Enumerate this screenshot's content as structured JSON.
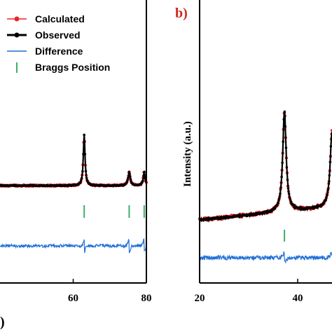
{
  "chart_data": [
    {
      "type": "line",
      "panel": "a",
      "panel_tag_fragment": ")",
      "xlim": [
        40,
        80
      ],
      "x_ticks": [
        60,
        80
      ],
      "legend": [
        {
          "label": "Calculated",
          "color": "#e8262b",
          "marker": "dot-line"
        },
        {
          "label": "Observed",
          "color": "#000000",
          "marker": "dot-line-thick"
        },
        {
          "label": "Difference",
          "color": "#1f6fd6",
          "marker": "line"
        },
        {
          "label": "Braggs Position",
          "color": "#3fae6b",
          "marker": "vbar"
        }
      ],
      "peaks": [
        {
          "x": 63.0,
          "height": 0.83,
          "width": 0.28
        },
        {
          "x": 75.3,
          "height": 0.22,
          "width": 0.35
        },
        {
          "x": 79.4,
          "height": 0.22,
          "width": 0.3
        }
      ],
      "bragg_positions": [
        63.0,
        75.3,
        79.4
      ],
      "series": [
        {
          "name": "Calculated",
          "color": "#e8262b"
        },
        {
          "name": "Observed",
          "color": "#000000"
        },
        {
          "name": "Difference",
          "color": "#1f6fd6"
        }
      ]
    },
    {
      "type": "line",
      "panel": "b",
      "panel_tag": "b)",
      "panel_tag_color": "#d4261d",
      "xlim": [
        20,
        47
      ],
      "x_ticks": [
        20,
        40
      ],
      "ylabel": "Intensity (a.u.)",
      "peaks": [
        {
          "x": 37.3,
          "height": 0.96,
          "width": 0.42
        },
        {
          "x": 47.0,
          "height": 0.72,
          "width": 0.45
        }
      ],
      "bragg_positions": [
        37.3
      ],
      "series": [
        {
          "name": "Calculated",
          "color": "#e8262b"
        },
        {
          "name": "Observed",
          "color": "#000000"
        },
        {
          "name": "Difference",
          "color": "#1f6fd6"
        }
      ]
    }
  ]
}
